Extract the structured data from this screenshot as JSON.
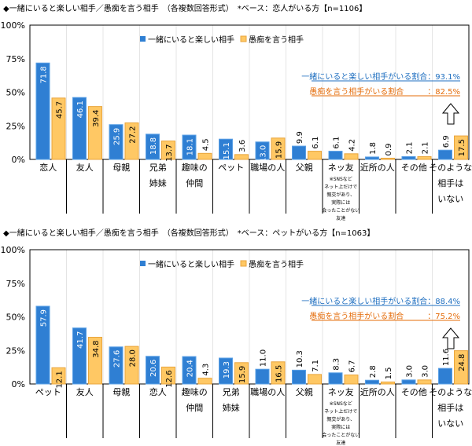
{
  "colors": {
    "blue": "#2f7fd3",
    "orange": "#ffc864",
    "orange_border": "#e9a53c",
    "summary_blue": "#1f6fc0",
    "summary_orange": "#e46c0a"
  },
  "chart_data": [
    {
      "type": "bar",
      "title": "◆一緒にいると楽しい相手／愚痴を言う相手　（各複数回答形式）　*ベース：恋人がいる方【n=1106】",
      "ylim": [
        0,
        100
      ],
      "yticks": [
        "0%",
        "25%",
        "50%",
        "75%",
        "100%"
      ],
      "legend_position": "top",
      "categories": [
        "恋人",
        "友人",
        "母親",
        "兄弟\n姉妹",
        "趣味の\n仲間",
        "ペット",
        "職場の人",
        "父親",
        "ネッ友",
        "近所の人",
        "その他",
        "そのような\n相手は\nいない"
      ],
      "category_notes": {
        "8": "※SNSなど\nネット上だけで\n親交があり、\n実際には\n会ったことがない\n友達"
      },
      "series": [
        {
          "name": "一緒にいると楽しい相手",
          "values": [
            71.8,
            46.1,
            25.9,
            18.8,
            18.1,
            15.1,
            13.0,
            9.9,
            6.1,
            1.8,
            2.1,
            6.9
          ]
        },
        {
          "name": "愚痴を言う相手",
          "values": [
            45.7,
            39.4,
            27.2,
            13.7,
            4.5,
            3.6,
            15.9,
            6.1,
            4.2,
            0.9,
            2.1,
            17.5
          ]
        }
      ],
      "summary": [
        {
          "label": "一緒にいると楽しい相手がいる割合：93.1%"
        },
        {
          "label": "愚痴を言う相手がいる割合　　　：82.5%"
        }
      ]
    },
    {
      "type": "bar",
      "title": "◆一緒にいると楽しい相手／愚痴を言う相手　（各複数回答形式）　*ベース：ペットがいる方【n=1063】",
      "ylim": [
        0,
        100
      ],
      "yticks": [
        "0%",
        "25%",
        "50%",
        "75%",
        "100%"
      ],
      "legend_position": "top",
      "categories": [
        "ペット",
        "友人",
        "母親",
        "恋人",
        "趣味の\n仲間",
        "兄弟\n姉妹",
        "職場の人",
        "父親",
        "ネッ友",
        "近所の人",
        "その他",
        "そのような\n相手は\nいない"
      ],
      "category_notes": {
        "8": "※SNSなど\nネット上だけで\n親交があり、\n実際には\n会ったことがない\n友達"
      },
      "series": [
        {
          "name": "一緒にいると楽しい相手",
          "values": [
            57.9,
            41.7,
            27.6,
            20.6,
            20.4,
            19.3,
            11.0,
            10.3,
            8.3,
            2.8,
            3.0,
            11.6
          ]
        },
        {
          "name": "愚痴を言う相手",
          "values": [
            12.1,
            34.8,
            28.0,
            12.6,
            4.3,
            15.9,
            16.5,
            7.1,
            6.7,
            1.5,
            3.0,
            24.8
          ]
        }
      ],
      "summary": [
        {
          "label": "一緒にいると楽しい相手がいる割合：88.4%"
        },
        {
          "label": "愚痴を言う相手がいる割合　　　：75.2%"
        }
      ]
    }
  ]
}
